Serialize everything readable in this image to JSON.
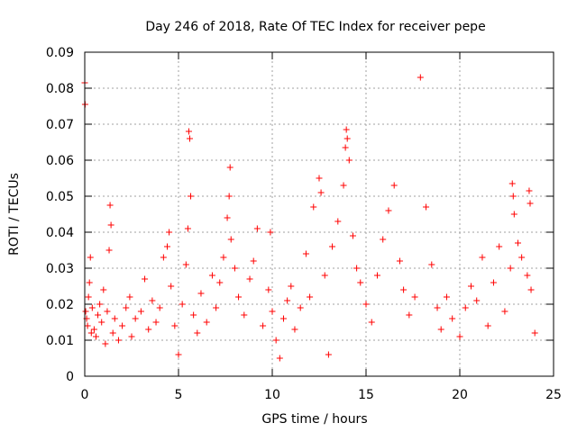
{
  "chart_data": {
    "type": "scatter",
    "title": "Day 246 of 2018, Rate Of TEC Index for receiver pepe",
    "xlabel": "GPS time / hours",
    "ylabel": "ROTI / TECUs",
    "xlim": [
      0,
      25
    ],
    "ylim": [
      0,
      0.09
    ],
    "x_ticks": [
      0,
      5,
      10,
      15,
      20,
      25
    ],
    "x_tick_labels": [
      "0",
      "5",
      "10",
      "15",
      "20",
      "25"
    ],
    "y_ticks": [
      0,
      0.01,
      0.02,
      0.03,
      0.04,
      0.05,
      0.06,
      0.07,
      0.08,
      0.09
    ],
    "y_tick_labels": [
      "0",
      "0.01",
      "0.02",
      "0.03",
      "0.04",
      "0.05",
      "0.06",
      "0.07",
      "0.08",
      "0.09"
    ],
    "grid": true,
    "marker": "+",
    "marker_color": "#ff0000",
    "series": [
      {
        "name": "ROTI",
        "points": [
          [
            0.0,
            0.0815
          ],
          [
            0.02,
            0.0755
          ],
          [
            0.05,
            0.018
          ],
          [
            0.1,
            0.016
          ],
          [
            0.15,
            0.014
          ],
          [
            0.2,
            0.022
          ],
          [
            0.25,
            0.026
          ],
          [
            0.3,
            0.033
          ],
          [
            0.35,
            0.012
          ],
          [
            0.4,
            0.019
          ],
          [
            0.5,
            0.013
          ],
          [
            0.6,
            0.011
          ],
          [
            0.7,
            0.017
          ],
          [
            0.8,
            0.02
          ],
          [
            0.9,
            0.015
          ],
          [
            1.0,
            0.024
          ],
          [
            1.1,
            0.009
          ],
          [
            1.2,
            0.018
          ],
          [
            1.3,
            0.035
          ],
          [
            1.35,
            0.0475
          ],
          [
            1.4,
            0.042
          ],
          [
            1.5,
            0.012
          ],
          [
            1.6,
            0.016
          ],
          [
            1.8,
            0.01
          ],
          [
            2.0,
            0.014
          ],
          [
            2.2,
            0.019
          ],
          [
            2.4,
            0.022
          ],
          [
            2.5,
            0.011
          ],
          [
            2.7,
            0.016
          ],
          [
            3.0,
            0.018
          ],
          [
            3.2,
            0.027
          ],
          [
            3.4,
            0.013
          ],
          [
            3.6,
            0.021
          ],
          [
            3.8,
            0.015
          ],
          [
            4.0,
            0.019
          ],
          [
            4.2,
            0.033
          ],
          [
            4.4,
            0.036
          ],
          [
            4.5,
            0.04
          ],
          [
            4.6,
            0.025
          ],
          [
            4.8,
            0.014
          ],
          [
            5.0,
            0.006
          ],
          [
            5.2,
            0.02
          ],
          [
            5.4,
            0.031
          ],
          [
            5.5,
            0.041
          ],
          [
            5.55,
            0.068
          ],
          [
            5.6,
            0.066
          ],
          [
            5.65,
            0.05
          ],
          [
            5.8,
            0.017
          ],
          [
            6.0,
            0.012
          ],
          [
            6.2,
            0.023
          ],
          [
            6.5,
            0.015
          ],
          [
            6.8,
            0.028
          ],
          [
            7.0,
            0.019
          ],
          [
            7.2,
            0.026
          ],
          [
            7.4,
            0.033
          ],
          [
            7.6,
            0.044
          ],
          [
            7.7,
            0.05
          ],
          [
            7.75,
            0.058
          ],
          [
            7.8,
            0.038
          ],
          [
            8.0,
            0.03
          ],
          [
            8.2,
            0.022
          ],
          [
            8.5,
            0.017
          ],
          [
            8.8,
            0.027
          ],
          [
            9.0,
            0.032
          ],
          [
            9.2,
            0.041
          ],
          [
            9.5,
            0.014
          ],
          [
            9.8,
            0.024
          ],
          [
            9.9,
            0.04
          ],
          [
            10.0,
            0.018
          ],
          [
            10.2,
            0.01
          ],
          [
            10.4,
            0.005
          ],
          [
            10.6,
            0.016
          ],
          [
            10.8,
            0.021
          ],
          [
            11.0,
            0.025
          ],
          [
            11.2,
            0.013
          ],
          [
            11.5,
            0.019
          ],
          [
            11.8,
            0.034
          ],
          [
            12.0,
            0.022
          ],
          [
            12.2,
            0.047
          ],
          [
            12.5,
            0.055
          ],
          [
            12.6,
            0.051
          ],
          [
            12.8,
            0.028
          ],
          [
            13.0,
            0.006
          ],
          [
            13.2,
            0.036
          ],
          [
            13.5,
            0.043
          ],
          [
            13.8,
            0.053
          ],
          [
            13.9,
            0.0635
          ],
          [
            13.95,
            0.0685
          ],
          [
            14.0,
            0.066
          ],
          [
            14.1,
            0.06
          ],
          [
            14.3,
            0.039
          ],
          [
            14.5,
            0.03
          ],
          [
            14.7,
            0.026
          ],
          [
            15.0,
            0.02
          ],
          [
            15.3,
            0.015
          ],
          [
            15.6,
            0.028
          ],
          [
            15.9,
            0.038
          ],
          [
            16.2,
            0.046
          ],
          [
            16.5,
            0.053
          ],
          [
            16.8,
            0.032
          ],
          [
            17.0,
            0.024
          ],
          [
            17.3,
            0.017
          ],
          [
            17.6,
            0.022
          ],
          [
            17.9,
            0.083
          ],
          [
            18.2,
            0.047
          ],
          [
            18.5,
            0.031
          ],
          [
            18.8,
            0.019
          ],
          [
            19.0,
            0.013
          ],
          [
            19.3,
            0.022
          ],
          [
            19.6,
            0.016
          ],
          [
            20.0,
            0.011
          ],
          [
            20.3,
            0.019
          ],
          [
            20.6,
            0.025
          ],
          [
            20.9,
            0.021
          ],
          [
            21.2,
            0.033
          ],
          [
            21.5,
            0.014
          ],
          [
            21.8,
            0.026
          ],
          [
            22.1,
            0.036
          ],
          [
            22.4,
            0.018
          ],
          [
            22.7,
            0.03
          ],
          [
            22.8,
            0.0535
          ],
          [
            22.85,
            0.05
          ],
          [
            22.9,
            0.045
          ],
          [
            23.1,
            0.037
          ],
          [
            23.3,
            0.033
          ],
          [
            23.6,
            0.028
          ],
          [
            23.7,
            0.0515
          ],
          [
            23.75,
            0.048
          ],
          [
            23.8,
            0.024
          ],
          [
            24.0,
            0.012
          ]
        ]
      }
    ]
  }
}
